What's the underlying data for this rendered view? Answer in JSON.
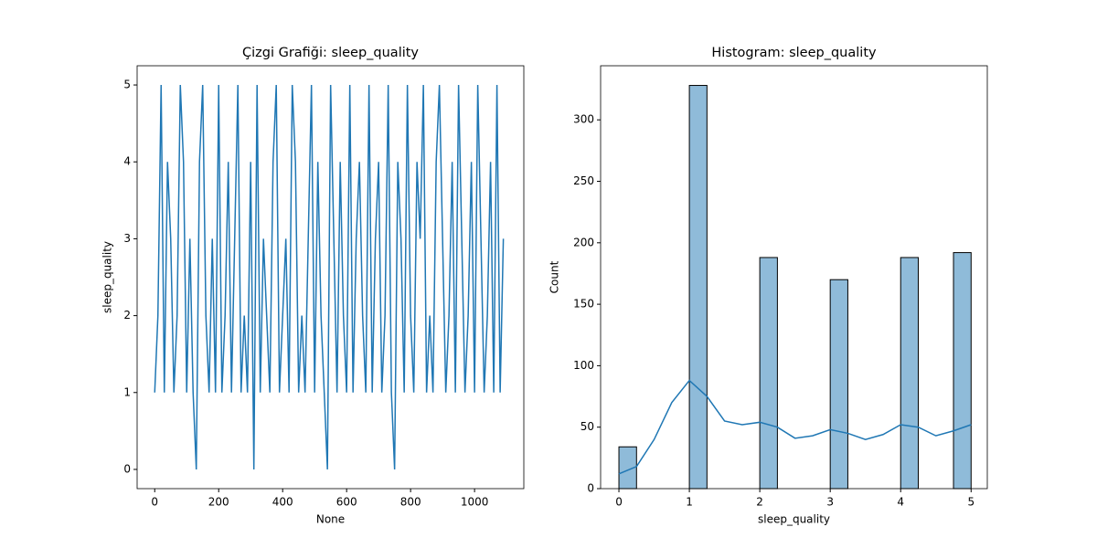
{
  "chart_data": [
    {
      "type": "line",
      "title": "Çizgi Grafiği: sleep_quality",
      "x_label": "None",
      "y_label": "sleep_quality",
      "x": [
        0,
        10,
        20,
        30,
        40,
        50,
        60,
        70,
        80,
        90,
        100,
        110,
        120,
        130,
        140,
        150,
        160,
        170,
        180,
        190,
        200,
        210,
        220,
        230,
        240,
        250,
        260,
        270,
        280,
        290,
        300,
        310,
        320,
        330,
        340,
        350,
        360,
        370,
        380,
        390,
        400,
        410,
        420,
        430,
        440,
        450,
        460,
        470,
        480,
        490,
        500,
        510,
        520,
        530,
        540,
        550,
        560,
        570,
        580,
        590,
        600,
        610,
        620,
        630,
        640,
        650,
        660,
        670,
        680,
        690,
        700,
        710,
        720,
        730,
        740,
        750,
        760,
        770,
        780,
        790,
        800,
        810,
        820,
        830,
        840,
        850,
        860,
        870,
        880,
        890,
        900,
        910,
        920,
        930,
        940,
        950,
        960,
        970,
        980,
        990,
        1000,
        1010,
        1020,
        1030,
        1040,
        1050,
        1060,
        1070,
        1080,
        1090
      ],
      "series": [
        {
          "name": "sleep_quality",
          "color": "#1f77b4",
          "values": [
            1,
            2,
            5,
            1,
            4,
            3,
            1,
            2,
            5,
            4,
            1,
            3,
            1,
            0,
            4,
            5,
            2,
            1,
            3,
            1,
            5,
            1,
            2,
            4,
            1,
            3,
            5,
            1,
            2,
            1,
            4,
            0,
            5,
            1,
            3,
            2,
            1,
            4,
            5,
            1,
            2,
            3,
            1,
            5,
            4,
            1,
            2,
            1,
            3,
            5,
            1,
            4,
            2,
            1,
            0,
            5,
            3,
            1,
            4,
            2,
            1,
            5,
            1,
            3,
            4,
            2,
            1,
            5,
            1,
            3,
            4,
            1,
            2,
            5,
            1,
            0,
            4,
            3,
            1,
            5,
            2,
            1,
            4,
            3,
            5,
            1,
            2,
            1,
            4,
            5,
            3,
            1,
            2,
            4,
            1,
            5,
            3,
            1,
            2,
            4,
            1,
            5,
            3,
            1,
            2,
            4,
            1,
            5,
            1,
            3
          ]
        }
      ],
      "xlim": [
        -55,
        1154
      ],
      "ylim": [
        -0.25,
        5.25
      ],
      "xticks": [
        0,
        200,
        400,
        600,
        800,
        1000
      ],
      "yticks": [
        0,
        1,
        2,
        3,
        4,
        5
      ]
    },
    {
      "type": "histogram",
      "title": "Histogram: sleep_quality",
      "x_label": "sleep_quality",
      "y_label": "Count",
      "bins": [
        0,
        0.25,
        0.5,
        0.75,
        1,
        1.25,
        1.5,
        1.75,
        2,
        2.25,
        2.5,
        2.75,
        3,
        3.25,
        3.5,
        3.75,
        4,
        4.25,
        4.5,
        4.75,
        5
      ],
      "values": [
        34,
        0,
        0,
        0,
        328,
        0,
        0,
        0,
        188,
        0,
        0,
        0,
        170,
        0,
        0,
        0,
        188,
        0,
        0,
        192
      ],
      "color": "#1f77b4",
      "kde": {
        "x": [
          0,
          0.25,
          0.5,
          0.75,
          1,
          1.25,
          1.5,
          1.75,
          2,
          2.25,
          2.5,
          2.75,
          3,
          3.25,
          3.5,
          3.75,
          4,
          4.25,
          4.5,
          4.75,
          5
        ],
        "y": [
          12,
          18,
          40,
          70,
          88,
          75,
          55,
          52,
          54,
          50,
          41,
          43,
          48,
          45,
          40,
          44,
          52,
          50,
          43,
          47,
          52
        ]
      },
      "xlim": [
        -0.26,
        5.23
      ],
      "ylim": [
        0,
        344
      ],
      "xticks": [
        0,
        1,
        2,
        3,
        4,
        5
      ],
      "yticks": [
        0,
        50,
        100,
        150,
        200,
        250,
        300
      ]
    }
  ]
}
